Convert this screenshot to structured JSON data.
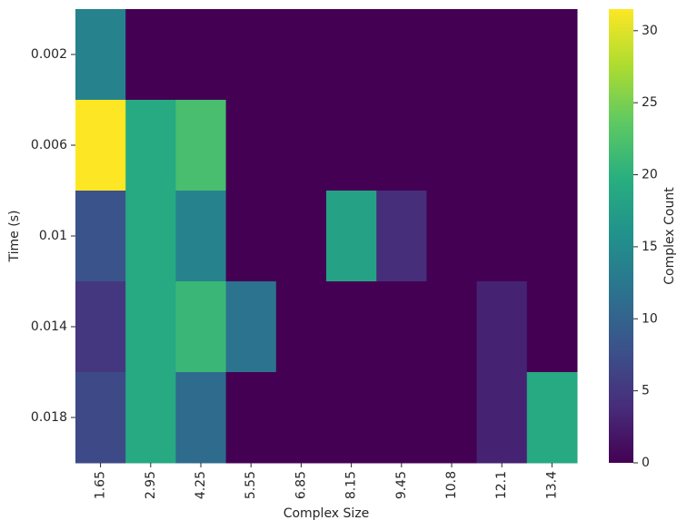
{
  "chart_data": {
    "type": "heatmap",
    "x_label": "Complex Size",
    "y_label": "Time (s)",
    "x": [
      "1.65",
      "2.95",
      "4.25",
      "5.55",
      "6.85",
      "8.15",
      "9.45",
      "10.8",
      "12.1",
      "13.4"
    ],
    "y": [
      "0.002",
      "0.006",
      "0.01",
      "0.014",
      "0.018"
    ],
    "values": [
      [
        14,
        0,
        0,
        0,
        0,
        0,
        0,
        0,
        0,
        0
      ],
      [
        31.5,
        19,
        22,
        0,
        0,
        0,
        0,
        0,
        0,
        0
      ],
      [
        8,
        19,
        14,
        0,
        0,
        18,
        4,
        0,
        0,
        0
      ],
      [
        5,
        19,
        21,
        12,
        0,
        0,
        0,
        0,
        3,
        0
      ],
      [
        7,
        19,
        11,
        0,
        0,
        0,
        0,
        0,
        3,
        19
      ]
    ],
    "colormap": "viridis",
    "zlim": [
      0,
      31.5
    ],
    "zticks": [
      0,
      5,
      10,
      15,
      20,
      25,
      30
    ],
    "colorbar_label": "Complex Count"
  }
}
